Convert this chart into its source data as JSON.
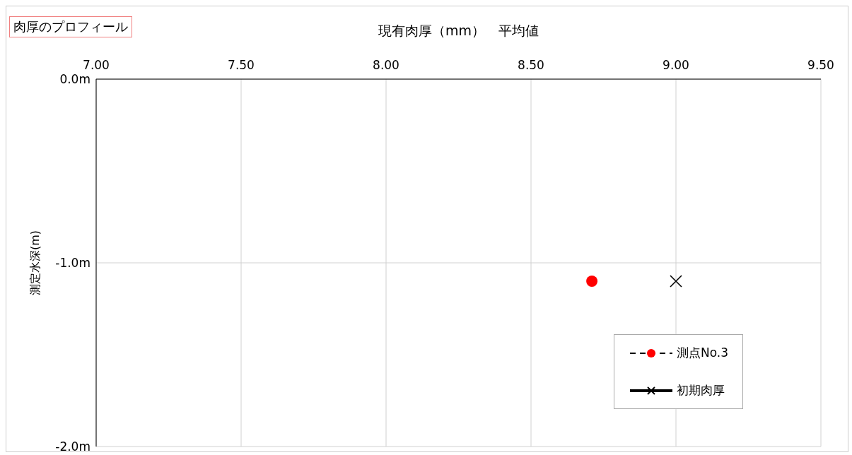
{
  "chart_data": {
    "type": "line",
    "title": "肉厚のプロフィール",
    "xlabel": "現有肉厚（mm）　平均値",
    "ylabel": "測定水深(m)",
    "xlim": [
      7,
      9.5
    ],
    "xticks": [
      {
        "value": 7,
        "label": "7.00"
      },
      {
        "value": 7.5,
        "label": "7.50"
      },
      {
        "value": 8,
        "label": "8.00"
      },
      {
        "value": 8.5,
        "label": "8.50"
      },
      {
        "value": 9,
        "label": "9.00"
      },
      {
        "value": 9.5,
        "label": "9.50"
      }
    ],
    "ylim": [
      -2,
      0
    ],
    "yticks": [
      {
        "value": -2,
        "label": "-2.0m"
      },
      {
        "value": -1,
        "label": "-1.0m"
      },
      {
        "value": 0,
        "label": "0.0m"
      }
    ],
    "grid": true,
    "legend": "bottom right",
    "series": [
      {
        "name": "測点No.3",
        "color": "#ff0000",
        "x": [
          8.71
        ],
        "values": [
          -1.1
        ],
        "marker": "circle",
        "line_style": "dashed"
      },
      {
        "name": "初期肉厚",
        "color": "#000000",
        "x": [
          9.0
        ],
        "values": [
          -1.1
        ],
        "marker": "cross",
        "line_style": "solid"
      }
    ]
  }
}
